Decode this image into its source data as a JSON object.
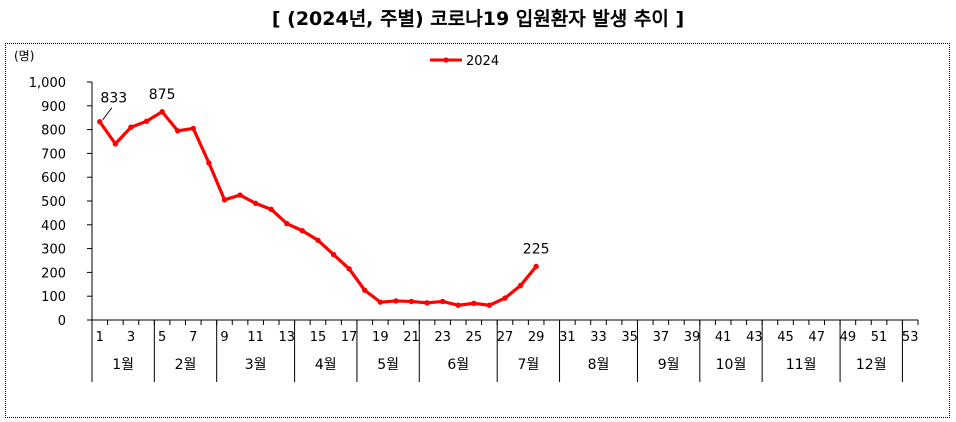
{
  "title": "[ (2024년, 주별) 코로나19 입원환자 발생 추이 ]",
  "chart_data": {
    "type": "line",
    "ylabel": "(명)",
    "ylim": [
      0,
      1000
    ],
    "yticks": [
      "0",
      "100",
      "200",
      "300",
      "400",
      "500",
      "600",
      "700",
      "800",
      "900",
      "1,000"
    ],
    "x_tick_labels": [
      "1",
      "3",
      "5",
      "7",
      "9",
      "11",
      "13",
      "15",
      "17",
      "19",
      "21",
      "23",
      "25",
      "27",
      "29",
      "31",
      "33",
      "35",
      "37",
      "39",
      "41",
      "43",
      "45",
      "47",
      "49",
      "51",
      "53"
    ],
    "x_range": [
      1,
      53
    ],
    "month_groups": [
      {
        "label": "1월",
        "start_week": 1,
        "end_week": 5
      },
      {
        "label": "2월",
        "start_week": 5,
        "end_week": 9
      },
      {
        "label": "3월",
        "start_week": 9,
        "end_week": 14
      },
      {
        "label": "4월",
        "start_week": 14,
        "end_week": 18
      },
      {
        "label": "5월",
        "start_week": 18,
        "end_week": 22
      },
      {
        "label": "6월",
        "start_week": 22,
        "end_week": 27
      },
      {
        "label": "7월",
        "start_week": 27,
        "end_week": 31
      },
      {
        "label": "8월",
        "start_week": 31,
        "end_week": 36
      },
      {
        "label": "9월",
        "start_week": 36,
        "end_week": 40
      },
      {
        "label": "10월",
        "start_week": 40,
        "end_week": 44
      },
      {
        "label": "11월",
        "start_week": 44,
        "end_week": 49
      },
      {
        "label": "12월",
        "start_week": 49,
        "end_week": 53
      }
    ],
    "series": [
      {
        "name": "2024",
        "color": "#ff0000",
        "x": [
          1,
          2,
          3,
          4,
          5,
          6,
          7,
          8,
          9,
          10,
          11,
          12,
          13,
          14,
          15,
          16,
          17,
          18,
          19,
          20,
          21,
          22,
          23,
          24,
          25,
          26,
          27,
          28,
          29
        ],
        "values": [
          833,
          740,
          810,
          835,
          875,
          795,
          805,
          660,
          505,
          525,
          490,
          465,
          405,
          375,
          335,
          275,
          215,
          125,
          75,
          80,
          78,
          72,
          78,
          62,
          70,
          62,
          92,
          145,
          225
        ]
      }
    ],
    "data_labels": [
      {
        "x": 1,
        "value": "833"
      },
      {
        "x": 5,
        "value": "875"
      },
      {
        "x": 29,
        "value": "225"
      }
    ],
    "legend": "top-center",
    "grid": false
  }
}
